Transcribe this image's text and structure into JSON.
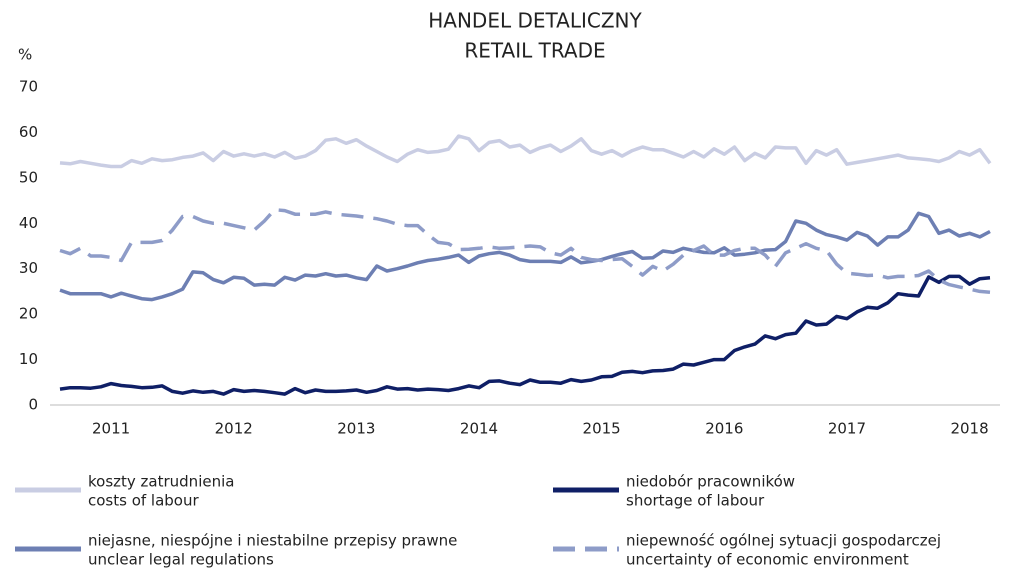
{
  "chart_data": {
    "type": "line",
    "title": "HANDEL DETALICZNY",
    "subtitle": "RETAIL TRADE",
    "y_label": "%",
    "categories": [
      null,
      null,
      null,
      null,
      null,
      "2011",
      null,
      null,
      null,
      null,
      null,
      null,
      null,
      null,
      null,
      null,
      null,
      "2012",
      null,
      null,
      null,
      null,
      null,
      null,
      null,
      null,
      null,
      null,
      null,
      "2013",
      null,
      null,
      null,
      null,
      null,
      null,
      null,
      null,
      null,
      null,
      null,
      "2014",
      null,
      null,
      null,
      null,
      null,
      null,
      null,
      null,
      null,
      null,
      null,
      "2015",
      null,
      null,
      null,
      null,
      null,
      null,
      null,
      null,
      null,
      null,
      null,
      "2016",
      null,
      null,
      null,
      null,
      null,
      null,
      null,
      null,
      null,
      null,
      null,
      "2017",
      null,
      null,
      null,
      null,
      null,
      null,
      null,
      null,
      null,
      null,
      null,
      "2018",
      null,
      null
    ],
    "ylim": [
      0,
      70
    ],
    "yticks": [
      0,
      10,
      20,
      30,
      40,
      50,
      60,
      70
    ],
    "grid": false,
    "series": [
      {
        "name": "koszty zatrudnienia",
        "name_en": "costs of labour",
        "color": "#c9cde3",
        "dashed": false,
        "values": [
          53.3,
          53.1,
          53.6,
          53.2,
          52.8,
          52.5,
          52.5,
          53.8,
          53.2,
          54.2,
          53.8,
          54.0,
          54.5,
          54.8,
          55.5,
          53.8,
          55.8,
          54.8,
          55.3,
          54.8,
          55.3,
          54.6,
          55.6,
          54.3,
          54.8,
          56.0,
          58.3,
          58.6,
          57.6,
          58.4,
          57.0,
          55.8,
          54.6,
          53.6,
          55.2,
          56.2,
          55.6,
          55.8,
          56.3,
          59.2,
          58.6,
          56.0,
          57.8,
          58.2,
          56.8,
          57.2,
          55.6,
          56.6,
          57.2,
          55.8,
          57.0,
          58.6,
          56.0,
          55.2,
          56.0,
          54.8,
          56.0,
          56.8,
          56.2,
          56.2,
          55.4,
          54.6,
          55.8,
          54.6,
          56.4,
          55.2,
          56.8,
          53.8,
          55.4,
          54.4,
          56.8,
          56.6,
          56.6,
          53.2,
          56.0,
          55.0,
          56.2,
          53.0,
          53.4,
          53.8,
          54.2,
          54.6,
          55.0,
          54.4,
          54.2,
          54.0,
          53.6,
          54.4,
          55.8,
          55.0,
          56.2,
          53.2
        ]
      },
      {
        "name": "niedobór pracowników",
        "name_en": "shortage of labour",
        "color": "#0f1f66",
        "dashed": false,
        "values": [
          3.5,
          3.8,
          3.8,
          3.7,
          4.0,
          4.7,
          4.3,
          4.1,
          3.8,
          3.9,
          4.2,
          3.0,
          2.6,
          3.1,
          2.8,
          3.0,
          2.4,
          3.4,
          3.0,
          3.2,
          3.0,
          2.7,
          2.4,
          3.6,
          2.7,
          3.3,
          3.0,
          3.0,
          3.1,
          3.3,
          2.8,
          3.2,
          4.0,
          3.5,
          3.6,
          3.3,
          3.5,
          3.4,
          3.2,
          3.6,
          4.2,
          3.8,
          5.2,
          5.3,
          4.8,
          4.5,
          5.5,
          5.0,
          5.0,
          4.8,
          5.6,
          5.2,
          5.5,
          6.2,
          6.3,
          7.2,
          7.4,
          7.1,
          7.5,
          7.6,
          7.9,
          9.0,
          8.8,
          9.4,
          10.0,
          10.0,
          12.0,
          12.8,
          13.4,
          15.2,
          14.6,
          15.5,
          15.8,
          18.5,
          17.6,
          17.8,
          19.5,
          19.0,
          20.5,
          21.5,
          21.3,
          22.5,
          24.5,
          24.2,
          24.0,
          28.2,
          27.0,
          28.3,
          28.3,
          26.6,
          27.8,
          28.0
        ]
      },
      {
        "name": "niejasne, niespójne i niestabilne przepisy prawne",
        "name_en": "unclear legal regulations",
        "color": "#6d7fb3",
        "dashed": false,
        "values": [
          25.3,
          24.5,
          24.5,
          24.5,
          24.5,
          23.8,
          24.6,
          24.0,
          23.4,
          23.2,
          23.8,
          24.5,
          25.5,
          29.3,
          29.1,
          27.6,
          26.9,
          28.1,
          27.9,
          26.4,
          26.6,
          26.4,
          28.1,
          27.5,
          28.6,
          28.4,
          28.9,
          28.4,
          28.6,
          28.0,
          27.6,
          30.6,
          29.5,
          30.0,
          30.6,
          31.3,
          31.8,
          32.1,
          32.5,
          33.0,
          31.4,
          32.8,
          33.3,
          33.6,
          33.0,
          32.0,
          31.6,
          31.6,
          31.6,
          31.4,
          32.6,
          31.3,
          31.6,
          32.0,
          32.7,
          33.3,
          33.8,
          32.3,
          32.4,
          33.9,
          33.6,
          34.5,
          34.0,
          33.6,
          33.5,
          34.6,
          33.0,
          33.2,
          33.5,
          34.1,
          34.2,
          36.0,
          40.5,
          40.0,
          38.5,
          37.5,
          37.0,
          36.3,
          38.0,
          37.2,
          35.2,
          37.0,
          37.0,
          38.5,
          42.2,
          41.5,
          37.8,
          38.5,
          37.2,
          37.8,
          37.0,
          38.2
        ]
      },
      {
        "name": "niepewność ogólnej sytuacji gospodarczej",
        "name_en": "uncertainty of economic environment",
        "color": "#8e9cc8",
        "dashed": true,
        "values": [
          34.0,
          33.3,
          34.5,
          32.8,
          32.8,
          32.5,
          31.8,
          35.8,
          35.8,
          35.8,
          36.2,
          38.5,
          41.5,
          41.5,
          40.5,
          40.0,
          40.0,
          39.5,
          39.0,
          38.5,
          40.5,
          43.0,
          42.8,
          42.0,
          42.0,
          42.0,
          42.5,
          42.0,
          41.8,
          41.6,
          41.3,
          41.0,
          40.5,
          39.8,
          39.5,
          39.5,
          37.5,
          35.8,
          35.5,
          34.2,
          34.3,
          34.5,
          34.8,
          34.5,
          34.6,
          34.8,
          35.0,
          34.8,
          33.5,
          33.0,
          34.5,
          32.5,
          32.0,
          31.8,
          32.0,
          32.2,
          30.5,
          28.6,
          30.5,
          29.5,
          31.0,
          33.0,
          34.0,
          35.0,
          33.0,
          33.0,
          34.0,
          34.5,
          34.5,
          33.0,
          30.5,
          33.5,
          34.5,
          35.5,
          34.5,
          34.0,
          31.0,
          29.0,
          28.8,
          28.5,
          28.6,
          28.0,
          28.3,
          28.3,
          28.5,
          29.5,
          27.5,
          26.5,
          26.0,
          25.5,
          25.0,
          24.8
        ]
      }
    ]
  }
}
